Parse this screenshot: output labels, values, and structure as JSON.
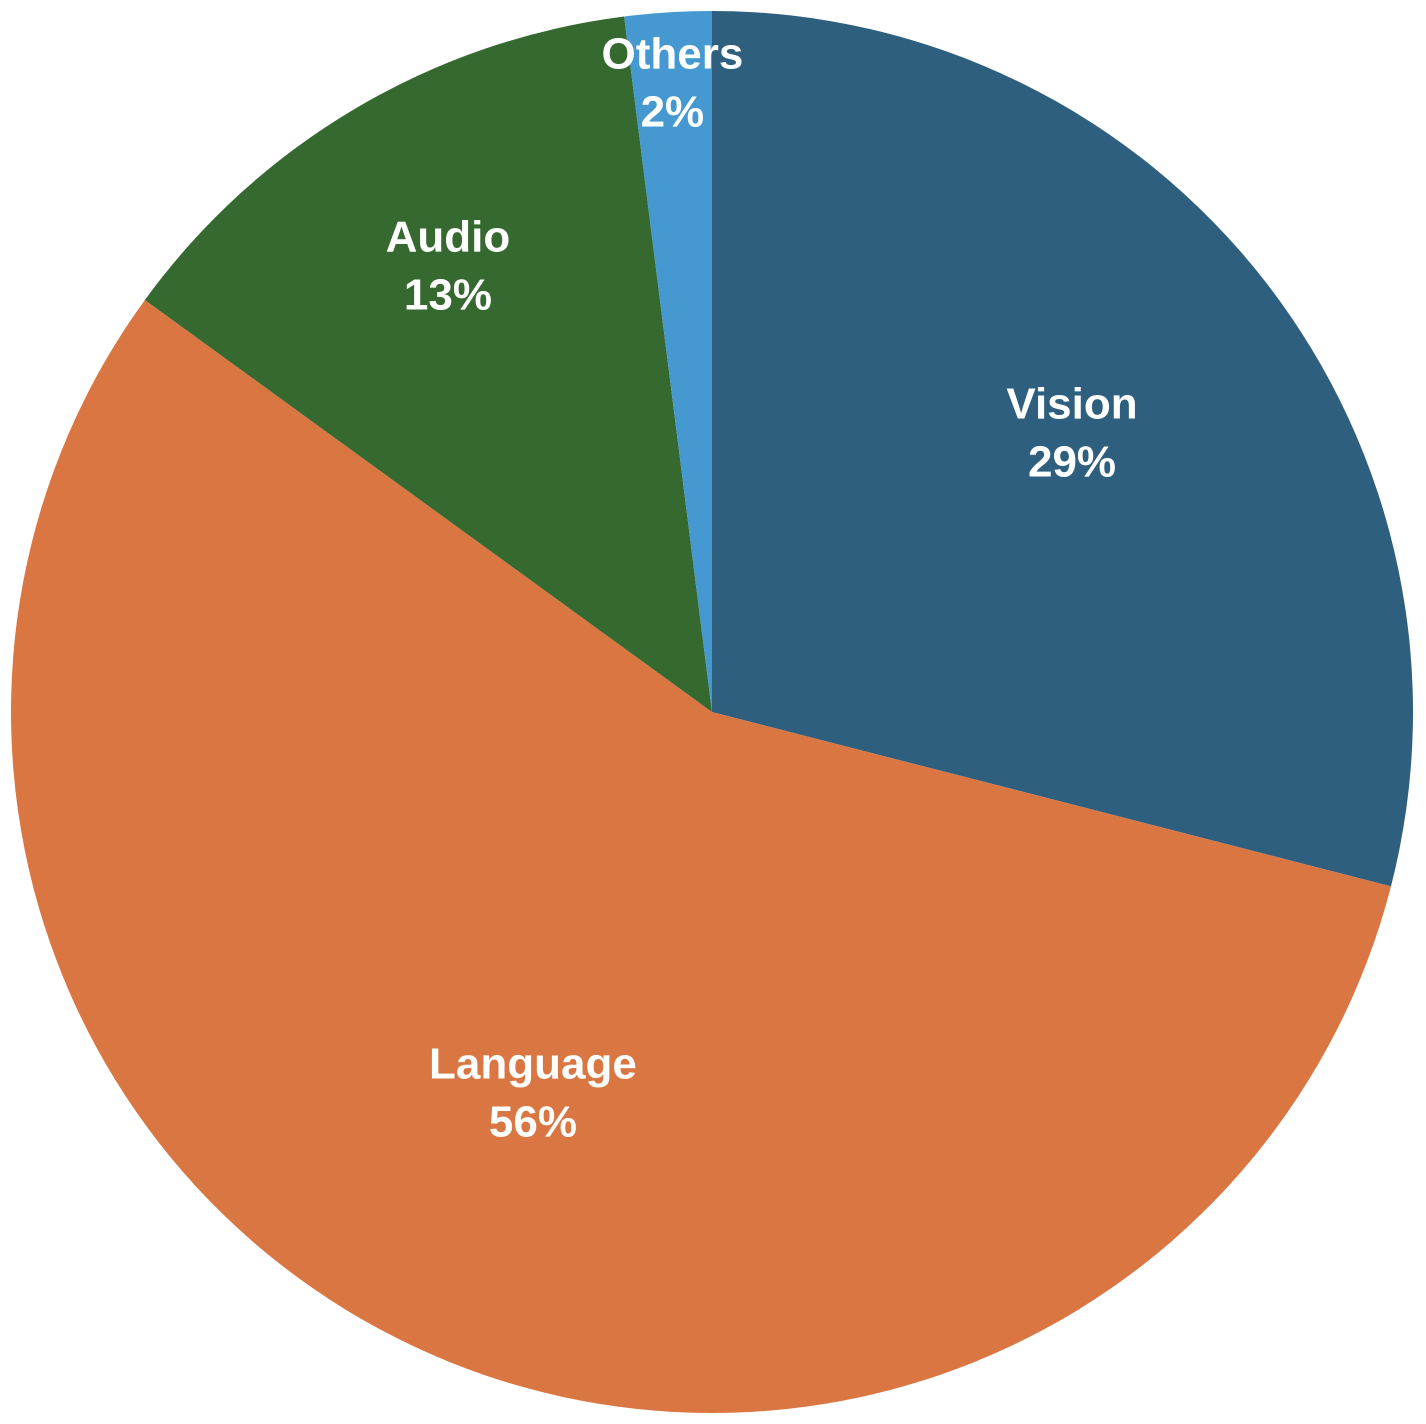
{
  "chart_data": {
    "type": "pie",
    "title": "",
    "start_angle_deg": 0,
    "direction": "clockwise",
    "legend": "none",
    "slices": [
      {
        "label": "Vision",
        "percent_label": "29%",
        "value": 29,
        "color": "#2E5F7E"
      },
      {
        "label": "Language",
        "percent_label": "56%",
        "value": 56,
        "color": "#DA7642"
      },
      {
        "label": "Audio",
        "percent_label": "13%",
        "value": 13,
        "color": "#36692F"
      },
      {
        "label": "Others",
        "percent_label": "2%",
        "value": 2,
        "color": "#4699D0"
      }
    ]
  }
}
